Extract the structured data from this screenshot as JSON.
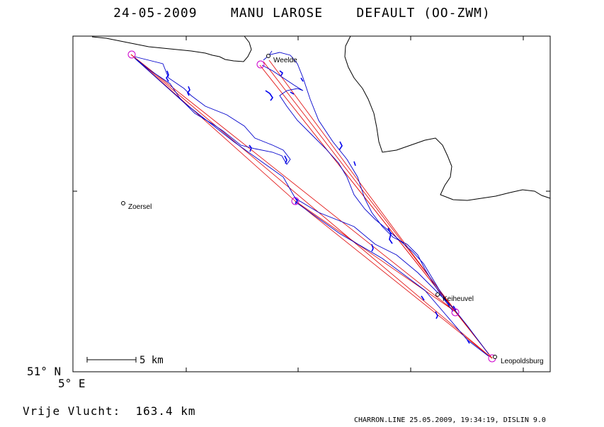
{
  "header": {
    "title": "24-05-2009    MANU LAROSE    DEFAULT (OO-ZWM)"
  },
  "axes": {
    "lat_label": "51° N",
    "lon_label": "5° E"
  },
  "scale_bar": {
    "label": "5 km"
  },
  "towns": [
    {
      "name": "Weelde"
    },
    {
      "name": "Zoersel"
    },
    {
      "name": "Keiheuvel"
    },
    {
      "name": "Leopoldsburg"
    }
  ],
  "summary": {
    "text": "Vrije Vlucht:  163.4 km"
  },
  "footer": {
    "text": "CHARRON.LINE 25.05.2009, 19:34:19, DISLIN 9.0"
  },
  "colors": {
    "track": "#0000cc",
    "task": "#e00000",
    "turnpoint": "#cc00cc",
    "frame": "#000000"
  }
}
